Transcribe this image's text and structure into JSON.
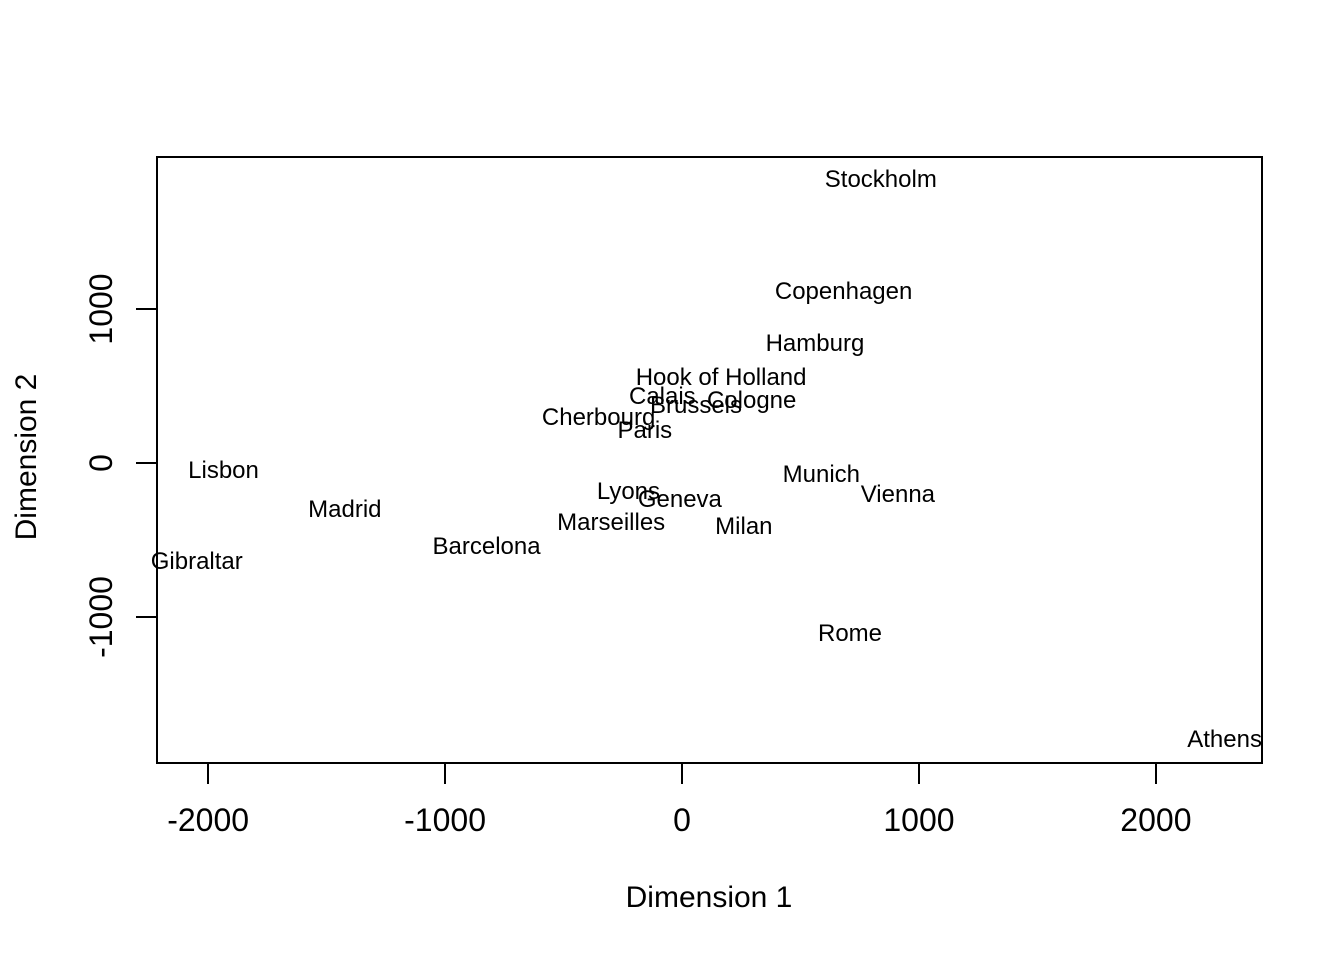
{
  "colors": {
    "background": "#ffffff",
    "foreground": "#000000",
    "plot_border": "#000000"
  },
  "chart_data": {
    "type": "scatter",
    "style": "r-base-text-labels",
    "title": "",
    "xlabel": "Dimension 1",
    "ylabel": "Dimension 2",
    "xlim": [
      -2220,
      2452
    ],
    "ylim": [
      -1955,
      1994
    ],
    "grid": false,
    "legend_position": "none",
    "x_ticks": [
      {
        "value": -2000,
        "label": "-2000"
      },
      {
        "value": -1000,
        "label": "-1000"
      },
      {
        "value": 0,
        "label": "0"
      },
      {
        "value": 1000,
        "label": "1000"
      },
      {
        "value": 2000,
        "label": "2000"
      }
    ],
    "y_ticks": [
      {
        "value": -1000,
        "label": "-1000"
      },
      {
        "value": 0,
        "label": "0"
      },
      {
        "value": 1000,
        "label": "1000"
      }
    ],
    "points": [
      {
        "label": "Athens",
        "x": 2290,
        "y": -1799
      },
      {
        "label": "Barcelona",
        "x": -825,
        "y": -547
      },
      {
        "label": "Brussels",
        "x": 59,
        "y": 367
      },
      {
        "label": "Calais",
        "x": -83,
        "y": 430
      },
      {
        "label": "Cherbourg",
        "x": -352,
        "y": 291
      },
      {
        "label": "Cologne",
        "x": 294,
        "y": 405
      },
      {
        "label": "Copenhagen",
        "x": 682,
        "y": 1109
      },
      {
        "label": "Geneva",
        "x": -9,
        "y": -240
      },
      {
        "label": "Gibraltar",
        "x": -2048,
        "y": -642
      },
      {
        "label": "Hamburg",
        "x": 561,
        "y": 773
      },
      {
        "label": "Hook of Holland",
        "x": 165,
        "y": 549
      },
      {
        "label": "Lisbon",
        "x": -1935,
        "y": -49
      },
      {
        "label": "Lyons",
        "x": -226,
        "y": -187
      },
      {
        "label": "Madrid",
        "x": -1423,
        "y": -306
      },
      {
        "label": "Marseilles",
        "x": -299,
        "y": -389
      },
      {
        "label": "Milan",
        "x": 261,
        "y": -417
      },
      {
        "label": "Munich",
        "x": 588,
        "y": -81
      },
      {
        "label": "Paris",
        "x": -157,
        "y": 211
      },
      {
        "label": "Rome",
        "x": 709,
        "y": -1109
      },
      {
        "label": "Stockholm",
        "x": 839,
        "y": 1837
      },
      {
        "label": "Vienna",
        "x": 911,
        "y": -206
      }
    ]
  }
}
